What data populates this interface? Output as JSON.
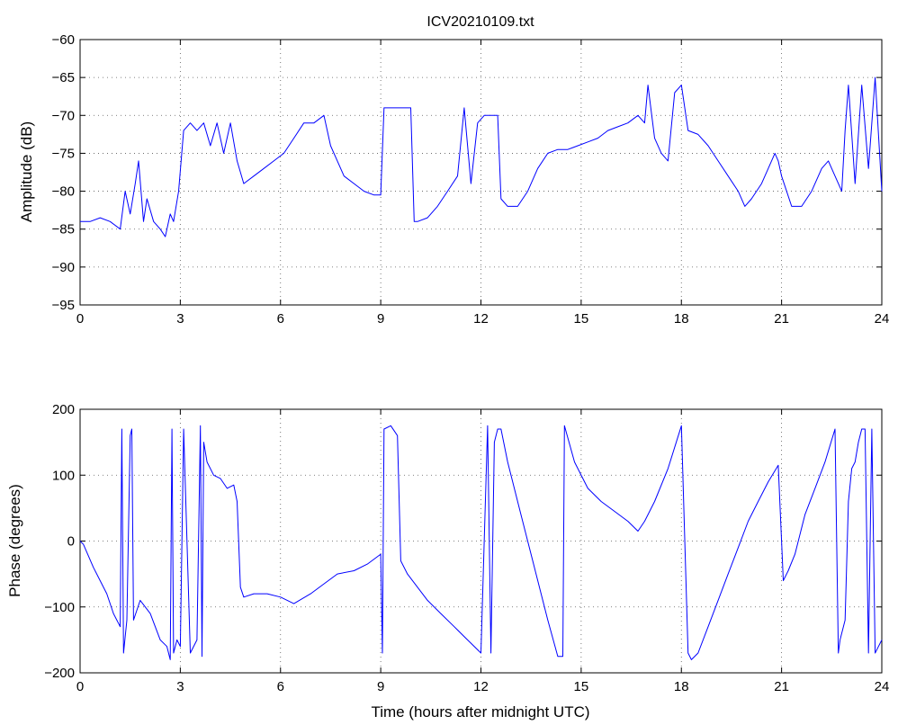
{
  "chart_data": [
    {
      "type": "line",
      "title": "ICV20210109.txt",
      "xlabel": "",
      "ylabel": "Amplitude (dB)",
      "xlim": [
        0,
        24
      ],
      "ylim": [
        -95,
        -60
      ],
      "xticks": [
        0,
        3,
        6,
        9,
        12,
        15,
        18,
        21,
        24
      ],
      "yticks": [
        -95,
        -90,
        -85,
        -80,
        -75,
        -70,
        -65,
        -60
      ],
      "grid": true,
      "color": "#0000ff",
      "series": [
        {
          "x": [
            0,
            0.3,
            0.6,
            0.9,
            1.2,
            1.35,
            1.5,
            1.65,
            1.75,
            1.9,
            2.0,
            2.2,
            2.4,
            2.55,
            2.7,
            2.8,
            2.95,
            3.1,
            3.3,
            3.5,
            3.7,
            3.9,
            4.1,
            4.3,
            4.5,
            4.7,
            4.9,
            5.2,
            5.5,
            5.8,
            6.1,
            6.4,
            6.7,
            7.0,
            7.3,
            7.5,
            7.7,
            7.9,
            8.2,
            8.5,
            8.8,
            9.0,
            9.1,
            9.3,
            9.5,
            9.7,
            9.9,
            10.0,
            10.1,
            10.4,
            10.7,
            11.0,
            11.3,
            11.5,
            11.7,
            11.9,
            12.1,
            12.3,
            12.5,
            12.6,
            12.8,
            13.1,
            13.4,
            13.7,
            14.0,
            14.3,
            14.6,
            14.9,
            15.2,
            15.5,
            15.8,
            16.1,
            16.4,
            16.7,
            16.9,
            17.0,
            17.2,
            17.4,
            17.6,
            17.8,
            18.0,
            18.2,
            18.5,
            18.8,
            19.1,
            19.4,
            19.7,
            19.9,
            20.1,
            20.4,
            20.6,
            20.8,
            20.9,
            21.0,
            21.3,
            21.6,
            21.9,
            22.2,
            22.4,
            22.6,
            22.8,
            22.9,
            23.0,
            23.2,
            23.4,
            23.6,
            23.8,
            24.0
          ],
          "values": [
            -84,
            -84,
            -83.5,
            -84,
            -85,
            -80,
            -83,
            -79,
            -76,
            -84,
            -81,
            -84,
            -85,
            -86,
            -83,
            -84,
            -80,
            -72,
            -71,
            -72,
            -71,
            -74,
            -71,
            -75,
            -71,
            -76,
            -79,
            -78,
            -77,
            -76,
            -75,
            -73,
            -71,
            -71,
            -70,
            -74,
            -76,
            -78,
            -79,
            -80,
            -80.5,
            -80.5,
            -69,
            -69,
            -69,
            -69,
            -69,
            -84,
            -84,
            -83.5,
            -82,
            -80,
            -78,
            -69,
            -79,
            -71,
            -70,
            -70,
            -70,
            -81,
            -82,
            -82,
            -80,
            -77,
            -75,
            -74.5,
            -74.5,
            -74,
            -73.5,
            -73,
            -72,
            -71.5,
            -71,
            -70,
            -71,
            -66,
            -73,
            -75,
            -76,
            -67,
            -66,
            -72,
            -72.5,
            -74,
            -76,
            -78,
            -80,
            -82,
            -81,
            -79,
            -77,
            -75,
            -76,
            -78,
            -82,
            -82,
            -80,
            -77,
            -76,
            -78,
            -80,
            -72,
            -66,
            -79,
            -66,
            -77,
            -65,
            -80
          ]
        }
      ]
    },
    {
      "type": "line",
      "title": "",
      "xlabel": "Time (hours after midnight UTC)",
      "ylabel": "Phase (degrees)",
      "xlim": [
        0,
        24
      ],
      "ylim": [
        -200,
        200
      ],
      "xticks": [
        0,
        3,
        6,
        9,
        12,
        15,
        18,
        21,
        24
      ],
      "yticks": [
        -200,
        -100,
        0,
        100,
        200
      ],
      "grid": true,
      "color": "#0000ff",
      "series": [
        {
          "x": [
            0,
            0.1,
            0.4,
            0.8,
            1.0,
            1.2,
            1.25,
            1.3,
            1.4,
            1.5,
            1.55,
            1.6,
            1.8,
            2.1,
            2.4,
            2.6,
            2.7,
            2.75,
            2.8,
            2.9,
            3.0,
            3.1,
            3.3,
            3.5,
            3.6,
            3.65,
            3.7,
            3.8,
            4.0,
            4.2,
            4.4,
            4.6,
            4.7,
            4.8,
            4.9,
            5.2,
            5.6,
            6.0,
            6.4,
            6.9,
            7.3,
            7.7,
            8.2,
            8.6,
            9.0,
            9.05,
            9.1,
            9.3,
            9.5,
            9.6,
            9.8,
            10.1,
            10.4,
            10.8,
            11.2,
            11.6,
            12.0,
            12.2,
            12.3,
            12.4,
            12.5,
            12.6,
            12.8,
            13.2,
            13.6,
            14.0,
            14.3,
            14.45,
            14.5,
            14.8,
            15.2,
            15.6,
            16.0,
            16.4,
            16.7,
            16.9,
            17.2,
            17.6,
            18.0,
            18.2,
            18.3,
            18.5,
            18.8,
            19.1,
            19.4,
            19.7,
            20.0,
            20.3,
            20.6,
            20.9,
            21.0,
            21.05,
            21.2,
            21.4,
            21.7,
            22.0,
            22.3,
            22.6,
            22.7,
            22.75,
            22.9,
            23.0,
            23.1,
            23.2,
            23.3,
            23.4,
            23.5,
            23.6,
            23.7,
            23.8,
            23.9,
            24.0
          ],
          "values": [
            0,
            -5,
            -40,
            -80,
            -110,
            -130,
            170,
            -170,
            -120,
            160,
            170,
            -120,
            -90,
            -110,
            -150,
            -160,
            -180,
            170,
            -170,
            -150,
            -160,
            170,
            -170,
            -150,
            175,
            -175,
            150,
            120,
            100,
            95,
            80,
            85,
            60,
            -70,
            -85,
            -80,
            -80,
            -85,
            -95,
            -80,
            -65,
            -50,
            -45,
            -35,
            -20,
            -170,
            170,
            175,
            160,
            -30,
            -50,
            -70,
            -90,
            -110,
            -130,
            -150,
            -170,
            175,
            -170,
            150,
            170,
            170,
            120,
            40,
            -40,
            -120,
            -175,
            -175,
            175,
            120,
            80,
            60,
            45,
            30,
            15,
            30,
            60,
            110,
            175,
            -170,
            -180,
            -170,
            -130,
            -90,
            -50,
            -10,
            30,
            60,
            90,
            115,
            0,
            -60,
            -45,
            -20,
            40,
            80,
            120,
            170,
            -170,
            -150,
            -120,
            60,
            110,
            120,
            150,
            170,
            170,
            -170,
            170,
            -170,
            -160,
            -150
          ]
        }
      ]
    }
  ]
}
